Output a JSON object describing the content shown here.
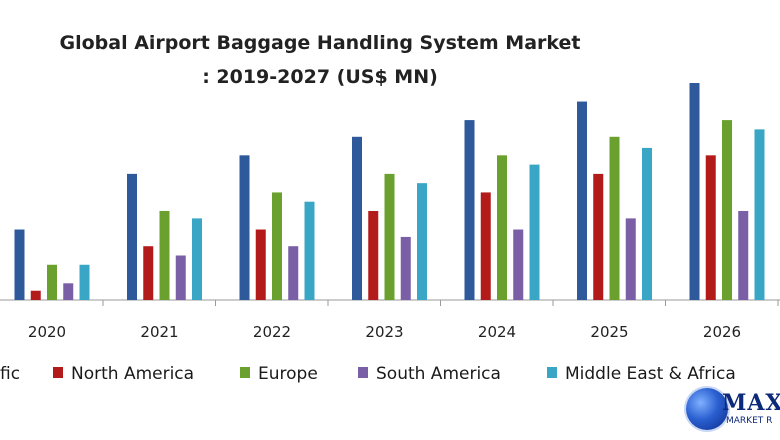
{
  "chart_data": {
    "type": "bar",
    "title_line1": "Global Airport Baggage Handling System Market",
    "title_line2": ": 2019-2027 (US$ MN)",
    "categories": [
      "2020",
      "2021",
      "2022",
      "2023",
      "2024",
      "2025",
      "2026"
    ],
    "series": [
      {
        "name": "Asia Pacific",
        "legend_visible": "fic",
        "color": "#2e5a9c",
        "values": [
          38,
          68,
          78,
          88,
          97,
          107,
          117
        ]
      },
      {
        "name": "North America",
        "color": "#b31b1b",
        "values": [
          5,
          29,
          38,
          48,
          58,
          68,
          78
        ]
      },
      {
        "name": "Europe",
        "color": "#6aa12e",
        "values": [
          19,
          48,
          58,
          68,
          78,
          88,
          97
        ]
      },
      {
        "name": "South America",
        "color": "#7a5fa6",
        "values": [
          9,
          24,
          29,
          34,
          38,
          44,
          48
        ]
      },
      {
        "name": "Middle East & Africa",
        "color": "#3aa6c6",
        "values": [
          19,
          44,
          53,
          63,
          73,
          82,
          92
        ]
      }
    ],
    "ylim": [
      0,
      117
    ],
    "grid": false,
    "legend_position": "bottom",
    "xlabel": "",
    "ylabel": ""
  },
  "logo": {
    "text": "MAXI",
    "subtext": "MARKET R"
  }
}
